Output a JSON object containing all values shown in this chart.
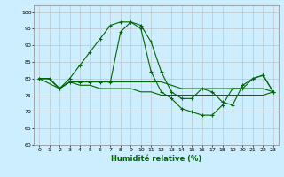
{
  "xlabel": "Humidité relative (%)",
  "bg_color": "#cceeff",
  "grid_color": "#bbbbbb",
  "line_color": "#006600",
  "xlim": [
    -0.5,
    23.5
  ],
  "ylim": [
    60,
    102
  ],
  "yticks": [
    60,
    65,
    70,
    75,
    80,
    85,
    90,
    95,
    100
  ],
  "xticks": [
    0,
    1,
    2,
    3,
    4,
    5,
    6,
    7,
    8,
    9,
    10,
    11,
    12,
    13,
    14,
    15,
    16,
    17,
    18,
    19,
    20,
    21,
    22,
    23
  ],
  "series": [
    {
      "x": [
        0,
        1,
        2,
        3,
        4,
        5,
        6,
        7,
        8,
        9,
        10,
        11,
        12,
        13,
        14,
        15,
        16,
        17,
        18,
        19,
        20,
        21,
        22,
        23
      ],
      "y": [
        80,
        80,
        77,
        80,
        84,
        88,
        92,
        96,
        97,
        97,
        96,
        91,
        82,
        76,
        74,
        74,
        77,
        76,
        73,
        72,
        78,
        80,
        81,
        76
      ],
      "marker": "+"
    },
    {
      "x": [
        0,
        1,
        2,
        3,
        4,
        5,
        6,
        7,
        8,
        9,
        10,
        11,
        12,
        13,
        14,
        15,
        16,
        17,
        18,
        19,
        20,
        21,
        22,
        23
      ],
      "y": [
        80,
        80,
        77,
        79,
        79,
        79,
        79,
        79,
        79,
        79,
        79,
        79,
        79,
        78,
        77,
        77,
        77,
        77,
        77,
        77,
        77,
        77,
        77,
        76
      ],
      "marker": null
    },
    {
      "x": [
        0,
        1,
        2,
        3,
        4,
        5,
        6,
        7,
        8,
        9,
        10,
        11,
        12,
        13,
        14,
        15,
        16,
        17,
        18,
        19,
        20,
        21,
        22,
        23
      ],
      "y": [
        80,
        80,
        77,
        79,
        78,
        78,
        77,
        77,
        77,
        77,
        76,
        76,
        75,
        75,
        75,
        75,
        75,
        75,
        75,
        75,
        75,
        75,
        75,
        76
      ],
      "marker": null
    },
    {
      "x": [
        0,
        2,
        3,
        4,
        5,
        6,
        7,
        8,
        9,
        10,
        11,
        12,
        13,
        14,
        15,
        16,
        17,
        18,
        19,
        20,
        21,
        22,
        23
      ],
      "y": [
        80,
        77,
        79,
        79,
        79,
        79,
        79,
        94,
        97,
        95,
        82,
        76,
        74,
        71,
        70,
        69,
        69,
        72,
        77,
        77,
        80,
        81,
        76
      ],
      "marker": "+"
    }
  ]
}
